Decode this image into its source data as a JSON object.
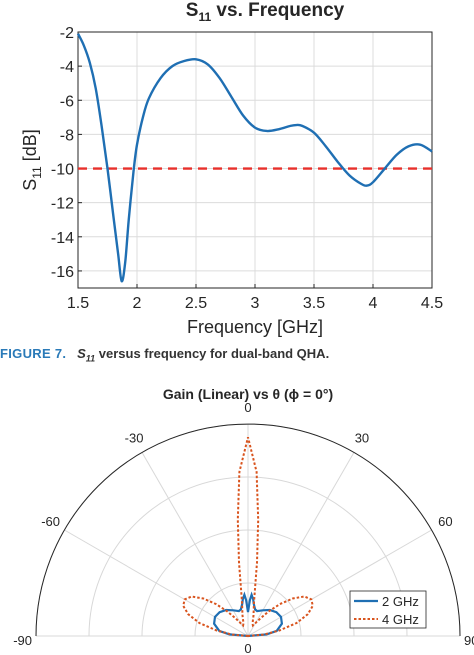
{
  "caption": {
    "figure_label": "FIGURE 7.",
    "symbol": "S",
    "symbol_sub": "11",
    "text": " versus frequency for dual-band QHA."
  },
  "chart_data": [
    {
      "type": "line",
      "title": "S",
      "title_sub": "11",
      "title_rest": " vs. Frequency",
      "xlabel": "Frequency [GHz]",
      "ylabel": "S",
      "ylabel_sub": "11",
      "ylabel_rest": " [dB]",
      "xlim": [
        1.5,
        4.5
      ],
      "ylim": [
        -17,
        -2
      ],
      "xticks": [
        "1.5",
        "2",
        "2.5",
        "3",
        "3.5",
        "4",
        "4.5"
      ],
      "yticks": [
        "-2",
        "-4",
        "-6",
        "-8",
        "-10",
        "-12",
        "-14",
        "-16"
      ],
      "grid": true,
      "series": [
        {
          "color": "#1f6fb3",
          "x": [
            1.5,
            1.55,
            1.6,
            1.65,
            1.7,
            1.75,
            1.8,
            1.84,
            1.87,
            1.9,
            1.93,
            1.97,
            2.0,
            2.05,
            2.1,
            2.2,
            2.3,
            2.4,
            2.5,
            2.6,
            2.7,
            2.8,
            2.9,
            3.0,
            3.1,
            3.2,
            3.3,
            3.35,
            3.4,
            3.5,
            3.6,
            3.7,
            3.8,
            3.9,
            3.95,
            4.0,
            4.1,
            4.2,
            4.3,
            4.4,
            4.5
          ],
          "y": [
            -2.1,
            -2.8,
            -3.8,
            -5.3,
            -7.5,
            -10.0,
            -12.8,
            -15.0,
            -16.6,
            -15.5,
            -13.0,
            -10.2,
            -8.6,
            -7.0,
            -5.9,
            -4.7,
            -4.0,
            -3.7,
            -3.6,
            -3.9,
            -4.7,
            -5.8,
            -6.9,
            -7.6,
            -7.8,
            -7.7,
            -7.5,
            -7.45,
            -7.5,
            -7.9,
            -8.7,
            -9.6,
            -10.4,
            -10.9,
            -11.0,
            -10.8,
            -10.0,
            -9.2,
            -8.7,
            -8.6,
            -9.0
          ]
        },
        {
          "color": "#e8302b",
          "dashed": true,
          "x": [
            1.5,
            4.5
          ],
          "y": [
            -10,
            -10
          ]
        }
      ]
    },
    {
      "type": "polar",
      "title": "Gain (Linear) vs θ (ϕ = 0°)",
      "angle_labels": [
        "0",
        "30",
        "-30",
        "60",
        "-60",
        "90",
        "-90"
      ],
      "rlim": [
        0,
        4
      ],
      "rticks": [
        "0",
        "1",
        "2",
        "3",
        "4"
      ],
      "legend_position": "bottom-right",
      "series": [
        {
          "name": "2 GHz",
          "color": "#1f6fb3",
          "theta": [
            -90,
            -85,
            -80,
            -70,
            -60,
            -50,
            -40,
            -30,
            -20,
            -15,
            -10,
            -8,
            -5,
            -3,
            0,
            3,
            5,
            8,
            10,
            15,
            20,
            30,
            40,
            50,
            60,
            70,
            80,
            85,
            90
          ],
          "r": [
            0.0,
            0.35,
            0.55,
            0.68,
            0.72,
            0.7,
            0.64,
            0.56,
            0.5,
            0.52,
            0.62,
            0.7,
            0.78,
            0.68,
            0.45,
            0.68,
            0.78,
            0.7,
            0.62,
            0.52,
            0.5,
            0.56,
            0.64,
            0.7,
            0.72,
            0.68,
            0.55,
            0.35,
            0.0
          ]
        },
        {
          "name": "4 GHz",
          "color": "#d9541e",
          "dashed": true,
          "theta": [
            -90,
            -85,
            -80,
            -75,
            -70,
            -65,
            -60,
            -55,
            -50,
            -45,
            -40,
            -35,
            -30,
            -25,
            -20,
            -15,
            -10,
            -7,
            -5,
            -3,
            0,
            3,
            5,
            7,
            10,
            15,
            20,
            25,
            30,
            35,
            40,
            45,
            50,
            55,
            60,
            65,
            70,
            75,
            80,
            85,
            90
          ],
          "r": [
            0.0,
            0.3,
            0.6,
            0.95,
            1.2,
            1.35,
            1.38,
            1.3,
            1.1,
            0.85,
            0.6,
            0.4,
            0.28,
            0.22,
            0.25,
            0.4,
            0.65,
            1.4,
            2.2,
            3.1,
            3.75,
            3.1,
            2.2,
            1.4,
            0.65,
            0.4,
            0.25,
            0.22,
            0.28,
            0.4,
            0.6,
            0.85,
            1.1,
            1.3,
            1.38,
            1.35,
            1.2,
            0.95,
            0.6,
            0.3,
            0.0
          ]
        }
      ]
    }
  ]
}
